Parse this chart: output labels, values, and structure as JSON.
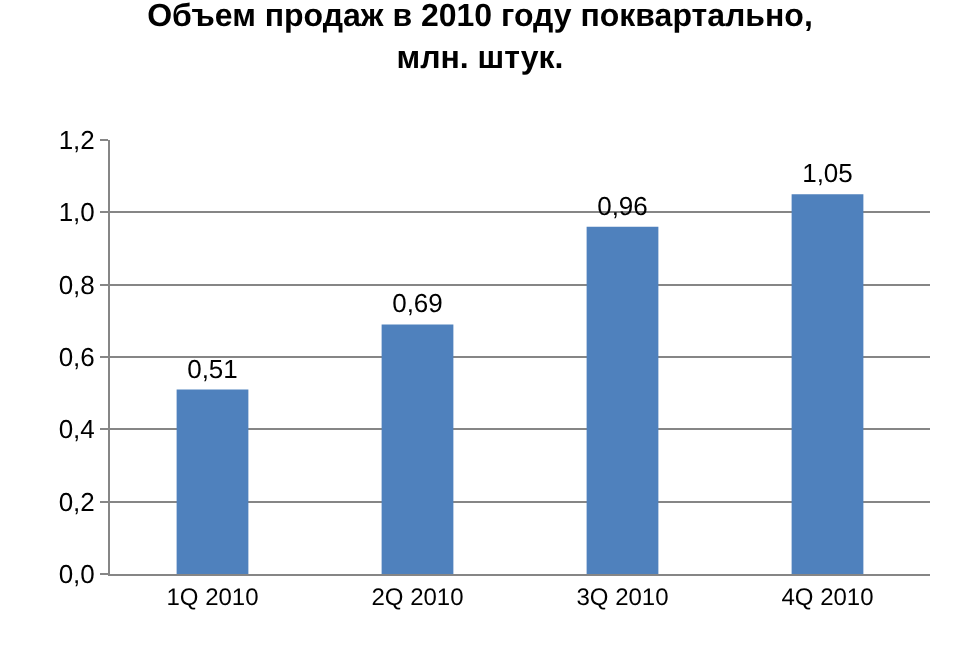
{
  "chart_data": {
    "type": "bar",
    "title": "Объем продаж в 2010 году поквартально, млн. штук.",
    "categories": [
      "1Q 2010",
      "2Q 2010",
      "3Q 2010",
      "4Q 2010"
    ],
    "values": [
      0.51,
      0.69,
      0.96,
      1.05
    ],
    "value_labels": [
      "0,51",
      "0,69",
      "0,96",
      "1,05"
    ],
    "color": "#4f81bd",
    "ylim": [
      0,
      1.2
    ],
    "yticks": [
      {
        "value": 0,
        "label": "0,0"
      },
      {
        "value": 0.2,
        "label": "0,2"
      },
      {
        "value": 0.4,
        "label": "0,4"
      },
      {
        "value": 0.6,
        "label": "0,6"
      },
      {
        "value": 0.8,
        "label": "0,8"
      },
      {
        "value": 1.0,
        "label": "1,0"
      },
      {
        "value": 1.2,
        "label": "1,2"
      }
    ],
    "grid": "y"
  }
}
